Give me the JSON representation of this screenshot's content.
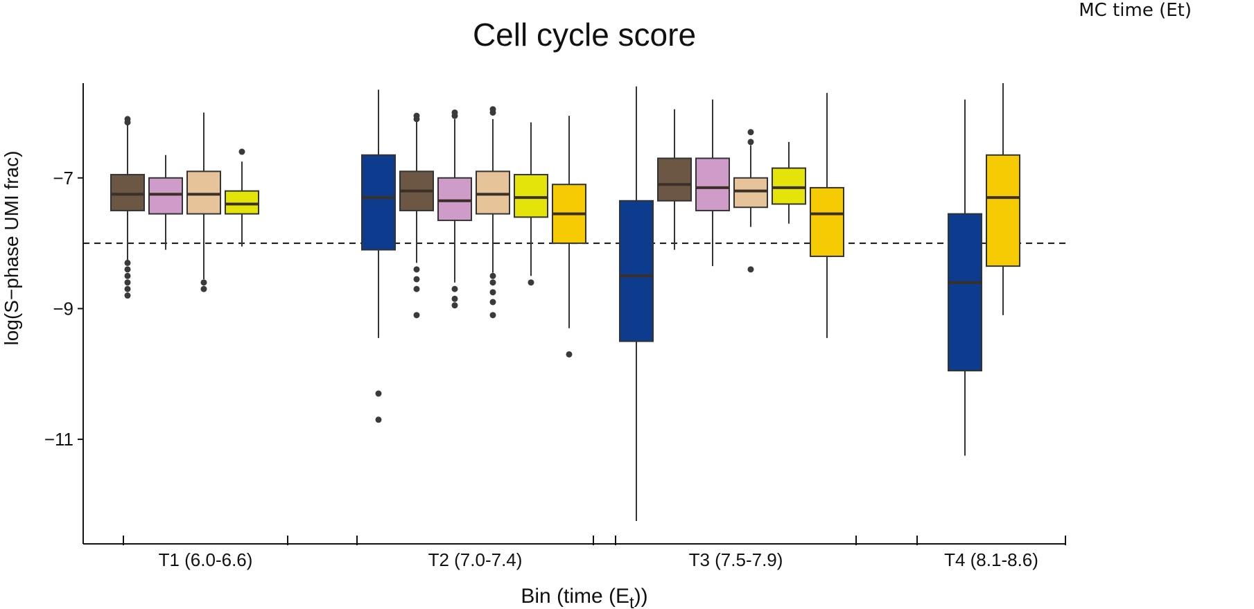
{
  "corner_label": "MC time (Et)",
  "chart_data": {
    "type": "boxplot",
    "title": "Cell cycle score",
    "ylabel": "log(S−phase UMI frac)",
    "xlabel": "Bin (time (E",
    "xlabel_sub": "t",
    "xlabel_end": "))",
    "ylim": [
      -12.6,
      -5.55
    ],
    "yticks": [
      -7,
      -9,
      -11
    ],
    "ytick_labels": [
      "−7",
      "−9",
      "−11"
    ],
    "reference_line": -8.0,
    "colors": {
      "blue": "#0d3b8e",
      "brown": "#6b5744",
      "pink": "#cf9bc8",
      "tan": "#e7c39a",
      "lime": "#e4e40b",
      "gold": "#f7cb04"
    },
    "bins": [
      {
        "label": "T1 (6.0-6.6)"
      },
      {
        "label": "T2 (7.0-7.4)"
      },
      {
        "label": "T3 (7.5-7.9)"
      },
      {
        "label": "T4 (8.1-8.6)"
      }
    ],
    "boxes": [
      {
        "bin": 0,
        "color": "brown",
        "wlo": -8.3,
        "q1": -7.5,
        "med": -7.25,
        "q3": -6.95,
        "whi": -6.15,
        "outliers": [
          -8.3,
          -8.4,
          -8.5,
          -8.6,
          -8.7,
          -8.8,
          -6.1,
          -6.15
        ]
      },
      {
        "bin": 0,
        "color": "pink",
        "wlo": -8.1,
        "q1": -7.55,
        "med": -7.25,
        "q3": -7.0,
        "whi": -6.65,
        "outliers": []
      },
      {
        "bin": 0,
        "color": "tan",
        "wlo": -8.55,
        "q1": -7.55,
        "med": -7.25,
        "q3": -6.9,
        "whi": -6.0,
        "outliers": [
          -8.6,
          -8.7
        ]
      },
      {
        "bin": 0,
        "color": "lime",
        "wlo": -8.05,
        "q1": -7.55,
        "med": -7.4,
        "q3": -7.2,
        "whi": -6.75,
        "outliers": [
          -6.6
        ]
      },
      {
        "bin": 1,
        "color": "blue",
        "wlo": -9.45,
        "q1": -8.1,
        "med": -7.3,
        "q3": -6.65,
        "whi": -5.65,
        "outliers": [
          -10.3,
          -10.7
        ]
      },
      {
        "bin": 1,
        "color": "brown",
        "wlo": -8.3,
        "q1": -7.5,
        "med": -7.2,
        "q3": -6.9,
        "whi": -6.1,
        "outliers": [
          -8.4,
          -8.55,
          -8.7,
          -9.1,
          -6.05,
          -6.1
        ]
      },
      {
        "bin": 1,
        "color": "pink",
        "wlo": -8.6,
        "q1": -7.65,
        "med": -7.35,
        "q3": -7.0,
        "whi": -6.1,
        "outliers": [
          -8.7,
          -8.85,
          -8.95,
          -6.0,
          -6.05
        ]
      },
      {
        "bin": 1,
        "color": "tan",
        "wlo": -8.45,
        "q1": -7.55,
        "med": -7.25,
        "q3": -6.9,
        "whi": -6.1,
        "outliers": [
          -8.5,
          -8.6,
          -8.75,
          -8.9,
          -9.1,
          -5.95,
          -6.0
        ]
      },
      {
        "bin": 1,
        "color": "lime",
        "wlo": -8.5,
        "q1": -7.6,
        "med": -7.3,
        "q3": -6.95,
        "whi": -6.15,
        "outliers": [
          -8.6
        ]
      },
      {
        "bin": 1,
        "color": "gold",
        "wlo": -9.3,
        "q1": -8.0,
        "med": -7.55,
        "q3": -7.1,
        "whi": -6.05,
        "outliers": [
          -9.7
        ]
      },
      {
        "bin": 2,
        "color": "blue",
        "wlo": -12.25,
        "q1": -9.5,
        "med": -8.5,
        "q3": -7.35,
        "whi": -5.6,
        "outliers": []
      },
      {
        "bin": 2,
        "color": "brown",
        "wlo": -8.1,
        "q1": -7.35,
        "med": -7.1,
        "q3": -6.7,
        "whi": -5.95,
        "outliers": []
      },
      {
        "bin": 2,
        "color": "pink",
        "wlo": -8.35,
        "q1": -7.5,
        "med": -7.15,
        "q3": -6.7,
        "whi": -5.8,
        "outliers": []
      },
      {
        "bin": 2,
        "color": "tan",
        "wlo": -7.75,
        "q1": -7.45,
        "med": -7.2,
        "q3": -7.0,
        "whi": -6.5,
        "outliers": [
          -6.3,
          -6.45,
          -8.4
        ]
      },
      {
        "bin": 2,
        "color": "lime",
        "wlo": -7.7,
        "q1": -7.4,
        "med": -7.15,
        "q3": -6.85,
        "whi": -6.45,
        "outliers": []
      },
      {
        "bin": 2,
        "color": "gold",
        "wlo": -9.45,
        "q1": -8.2,
        "med": -7.55,
        "q3": -7.15,
        "whi": -5.7,
        "outliers": []
      },
      {
        "bin": 3,
        "color": "blue",
        "wlo": -11.25,
        "q1": -9.95,
        "med": -8.6,
        "q3": -7.55,
        "whi": -5.8,
        "outliers": []
      },
      {
        "bin": 3,
        "color": "gold",
        "wlo": -9.1,
        "q1": -8.35,
        "med": -7.3,
        "q3": -6.65,
        "whi": -5.55,
        "outliers": []
      }
    ]
  }
}
